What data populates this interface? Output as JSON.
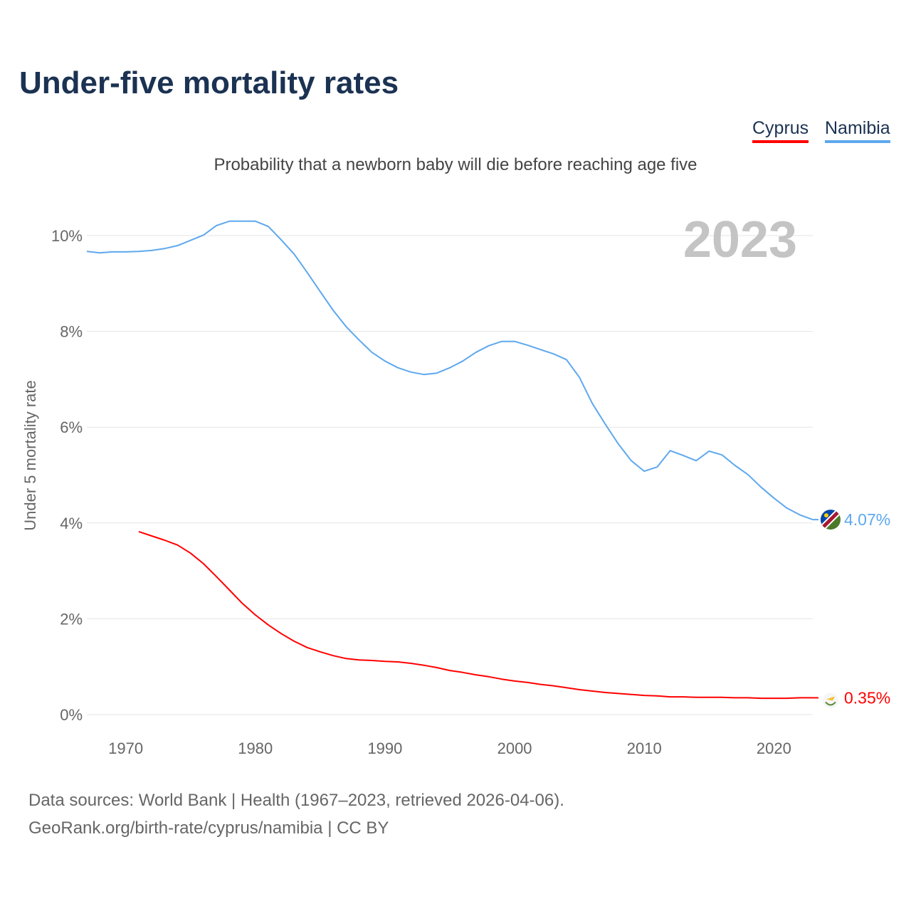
{
  "chart_data": {
    "type": "line",
    "title": "Under-five mortality rates",
    "subtitle": "Probability that a newborn baby will die before reaching age five",
    "ylabel": "Under 5 mortality rate",
    "xlabel": "",
    "year_label": "2023",
    "xlim": [
      1967,
      2023
    ],
    "ylim": [
      0,
      10.6
    ],
    "x_ticks": [
      1970,
      1980,
      1990,
      2000,
      2010,
      2020
    ],
    "y_ticks": [
      0,
      2,
      4,
      6,
      8,
      10
    ],
    "y_tick_labels": [
      "0%",
      "2%",
      "4%",
      "6%",
      "8%",
      "10%"
    ],
    "grid": true,
    "legend_position": "top-right",
    "series": [
      {
        "name": "Cyprus",
        "color": "#ff0000",
        "end_label": "0.35%",
        "start": 1971,
        "values": [
          3.82,
          3.73,
          3.64,
          3.54,
          3.37,
          3.15,
          2.88,
          2.6,
          2.32,
          2.08,
          1.87,
          1.69,
          1.53,
          1.4,
          1.31,
          1.23,
          1.17,
          1.14,
          1.13,
          1.11,
          1.1,
          1.07,
          1.03,
          0.98,
          0.92,
          0.88,
          0.83,
          0.79,
          0.74,
          0.7,
          0.67,
          0.63,
          0.6,
          0.56,
          0.52,
          0.49,
          0.46,
          0.44,
          0.42,
          0.4,
          0.39,
          0.37,
          0.37,
          0.36,
          0.36,
          0.36,
          0.35,
          0.35,
          0.34,
          0.34,
          0.34,
          0.35,
          0.35
        ]
      },
      {
        "name": "Namibia",
        "color": "#5ea8ee",
        "end_label": "4.07%",
        "start": 1967,
        "values": [
          9.67,
          9.64,
          9.66,
          9.66,
          9.67,
          9.69,
          9.73,
          9.79,
          9.9,
          10.01,
          10.21,
          10.3,
          10.3,
          10.3,
          10.19,
          9.91,
          9.61,
          9.23,
          8.83,
          8.44,
          8.1,
          7.82,
          7.56,
          7.38,
          7.24,
          7.15,
          7.1,
          7.13,
          7.24,
          7.38,
          7.56,
          7.7,
          7.79,
          7.79,
          7.71,
          7.62,
          7.53,
          7.41,
          7.04,
          6.49,
          6.06,
          5.65,
          5.3,
          5.08,
          5.17,
          5.51,
          5.41,
          5.3,
          5.5,
          5.42,
          5.2,
          5.01,
          4.75,
          4.52,
          4.31,
          4.17,
          4.07
        ]
      }
    ]
  },
  "footer": {
    "line1": "Data sources: World Bank | Health (1967–2023, retrieved 2026-04-06).",
    "line2": "GeoRank.org/birth-rate/cyprus/namibia | CC BY"
  }
}
